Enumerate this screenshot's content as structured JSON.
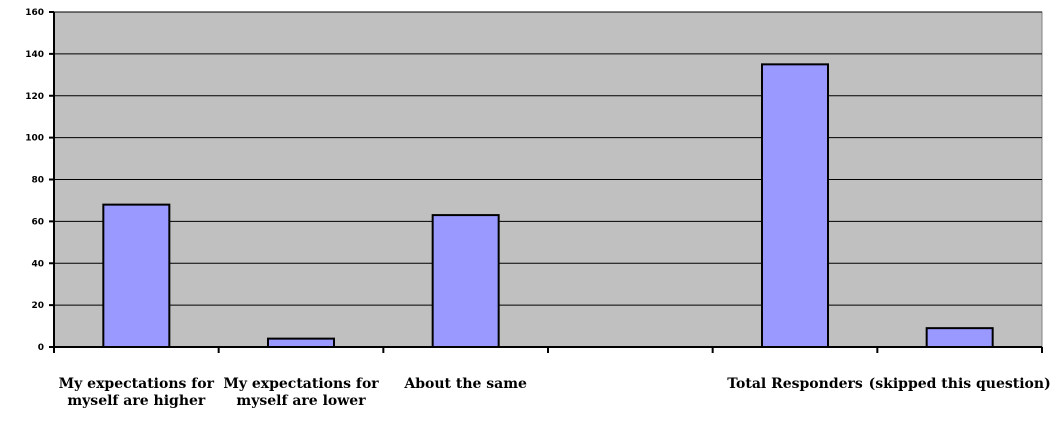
{
  "chart_data": {
    "type": "bar",
    "title": "",
    "xlabel": "",
    "ylabel": "",
    "ylim": [
      0,
      160
    ],
    "yticks": [
      0,
      20,
      40,
      60,
      80,
      100,
      120,
      140,
      160
    ],
    "grid": true,
    "legend": "none",
    "categories": [
      [
        "My expectations for",
        "myself are higher"
      ],
      [
        "My expectations for",
        "myself are lower"
      ],
      [
        "About the same",
        ""
      ],
      [
        "",
        ""
      ],
      [
        "Total Responders",
        ""
      ],
      [
        "(skipped this question)",
        ""
      ]
    ],
    "values": [
      68,
      4,
      63,
      null,
      135,
      9
    ],
    "colors": {
      "plot_background": "#c0c0c0",
      "bar_fill": "#9999ff",
      "bar_stroke": "#000000",
      "gridline": "#000000"
    }
  }
}
